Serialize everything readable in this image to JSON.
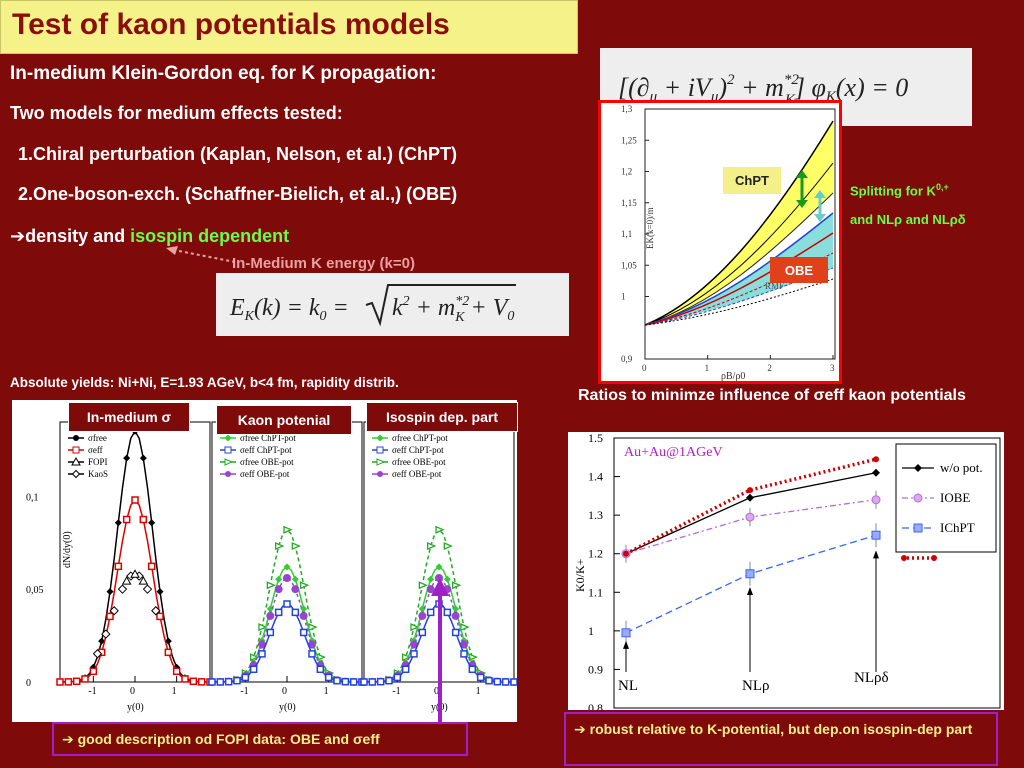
{
  "slide": {
    "title": "Test of kaon potentials models",
    "line1": "In-medium Klein-Gordon eq. for K propagation:",
    "line2": "Two models for medium effects tested:",
    "item1": "1.Chiral perturbation (Kaplan, Nelson, et al.) (ChPT)",
    "item2": "2.One-boson-exch. (Schaffner-Bielich, et al.,) (OBE)",
    "arrow_glyph": "➔",
    "density_text": "density and ",
    "isospin_text": "isospin dependent",
    "energy_label": "In-Medium K energy (k=0)",
    "kg_equation": "[(∂μ + iVμ)² + m*²K] φK(x) = 0",
    "ek_equation": "EK(k) = k0 = √(k² + m*²K) + V0",
    "splitting_line1": "Splitting for K",
    "splitting_sup": "0,+",
    "splitting_line2": "and NLρ and NLρδ",
    "abs_yields": "Absolute yields: Ni+Ni, E=1.93 AGeV, b<4 fm, rapidity distrib.",
    "ratios_label": "Ratios to minimze influence of σeff kaon potentials",
    "good_desc": "➔ good description od FOPI data: OBE and σeff",
    "robust_desc": "➔ robust relative  to K-potential, but dep.on isospin-dep part"
  },
  "energy_chart": {
    "tag_chpt": "ChPT",
    "tag_obe": "OBE",
    "rmf_label": "RMF",
    "y_ticks": [
      "0,9",
      "1",
      "1,05",
      "1,1",
      "1,15",
      "1,2",
      "1,25",
      "1,3"
    ],
    "x_ticks": [
      "0",
      "1",
      "2",
      "3"
    ],
    "xlabel": "ρB/ρ0",
    "ylabel": "EK(k=0)/m",
    "colors": {
      "frame": "#ff0000",
      "chpt_fill": "#ffff66",
      "obe_fill": "#88dddd"
    }
  },
  "yield_panels": {
    "labels": [
      "In-medium σ",
      "Kaon potenial",
      "Isospin dep. part"
    ],
    "ylabel": "dN/dy(0)",
    "xlabel": "y(0)",
    "y_ticks": [
      "0",
      "0,05",
      "0,1"
    ],
    "x_ticks": [
      "-1",
      "0",
      "1"
    ],
    "legend1": [
      "σfree",
      "σeff",
      "FOPI",
      "KaoS"
    ],
    "legend2": [
      "σfree ChPT-pot",
      "σeff ChPT-pot",
      "σfree OBE-pot",
      "σeff OBE-pot"
    ],
    "legend3": [
      "σfree ChPT-pot",
      "σeff ChPT-pot",
      "σfree OBE-pot",
      "σeff OBE-pot"
    ]
  },
  "chart_data": {
    "type": "line",
    "title": "Au+Au@1AGeV",
    "xlabel": "",
    "ylabel": "K0/K+",
    "categories": [
      "NL",
      "NLρ",
      "NLρδ"
    ],
    "ylim": [
      0.8,
      1.5
    ],
    "y_ticks": [
      "0.8",
      "0.9",
      "1",
      "1.1",
      "1.2",
      "1.3",
      "1.4",
      "1.5"
    ],
    "series": [
      {
        "name": "w/o pot.",
        "values": [
          1.2,
          1.345,
          1.41
        ],
        "color": "#000000"
      },
      {
        "name": "IOBE",
        "values": [
          1.2,
          1.295,
          1.34
        ],
        "color": "#b36bd6"
      },
      {
        "name": "IChPT",
        "values": [
          0.995,
          1.148,
          1.248
        ],
        "color": "#3366ff"
      },
      {
        "name": "",
        "values": [
          1.2,
          1.365,
          1.445
        ],
        "color": "#cc0000"
      }
    ]
  }
}
